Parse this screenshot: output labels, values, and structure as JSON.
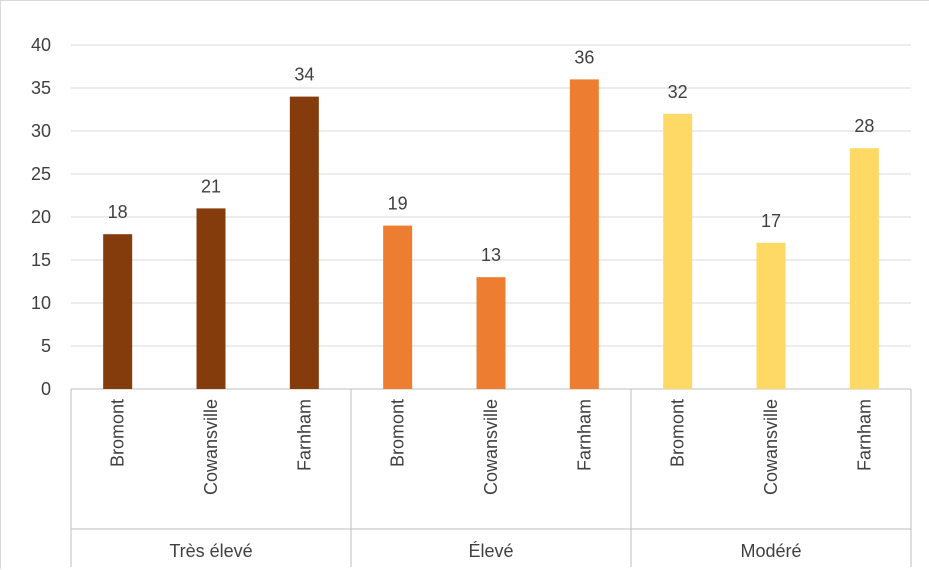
{
  "chart_data": {
    "type": "bar",
    "title": "",
    "xlabel": "",
    "ylabel": "",
    "ylim": [
      0,
      40
    ],
    "yticks": [
      0,
      5,
      10,
      15,
      20,
      25,
      30,
      35,
      40
    ],
    "grid": true,
    "legend": "none",
    "groups": [
      {
        "label": "Très élevé",
        "color": "#843c0c",
        "categories": [
          "Bromont",
          "Cowansville",
          "Farnham"
        ],
        "values": [
          18,
          21,
          34
        ]
      },
      {
        "label": "Élevé",
        "color": "#ed7d31",
        "categories": [
          "Bromont",
          "Cowansville",
          "Farnham"
        ],
        "values": [
          19,
          13,
          36
        ]
      },
      {
        "label": "Modéré",
        "color": "#ffd966",
        "categories": [
          "Bromont",
          "Cowansville",
          "Farnham"
        ],
        "values": [
          32,
          17,
          28
        ]
      }
    ],
    "data_labels": true
  }
}
